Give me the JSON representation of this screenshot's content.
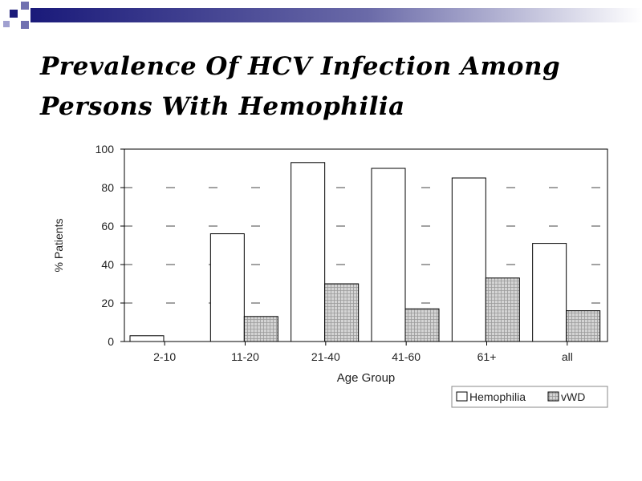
{
  "slide": {
    "title_line1": "Prevalence Of HCV Infection Among",
    "title_line2": "Persons With Hemophilia"
  },
  "colors": {
    "header_dark": "#1a1a7a",
    "header_light": "#ffffff",
    "bar_outline": "#000000",
    "hemophilia_fill": "#ffffff",
    "vwd_fill": "#c8c8c8"
  },
  "chart_data": {
    "type": "bar",
    "categories": [
      "2-10",
      "11-20",
      "21-40",
      "41-60",
      "61+",
      "all"
    ],
    "series": [
      {
        "name": "Hemophilia",
        "values": [
          3,
          56,
          93,
          90,
          85,
          51
        ]
      },
      {
        "name": "vWD",
        "values": [
          0,
          13,
          30,
          17,
          33,
          16
        ]
      }
    ],
    "title": "",
    "xlabel": "Age Group",
    "ylabel": "% Patients",
    "ylim": [
      0,
      100
    ],
    "yticks": [
      0,
      20,
      40,
      60,
      80,
      100
    ],
    "grid": "dashed",
    "legend": "bottom-right"
  }
}
